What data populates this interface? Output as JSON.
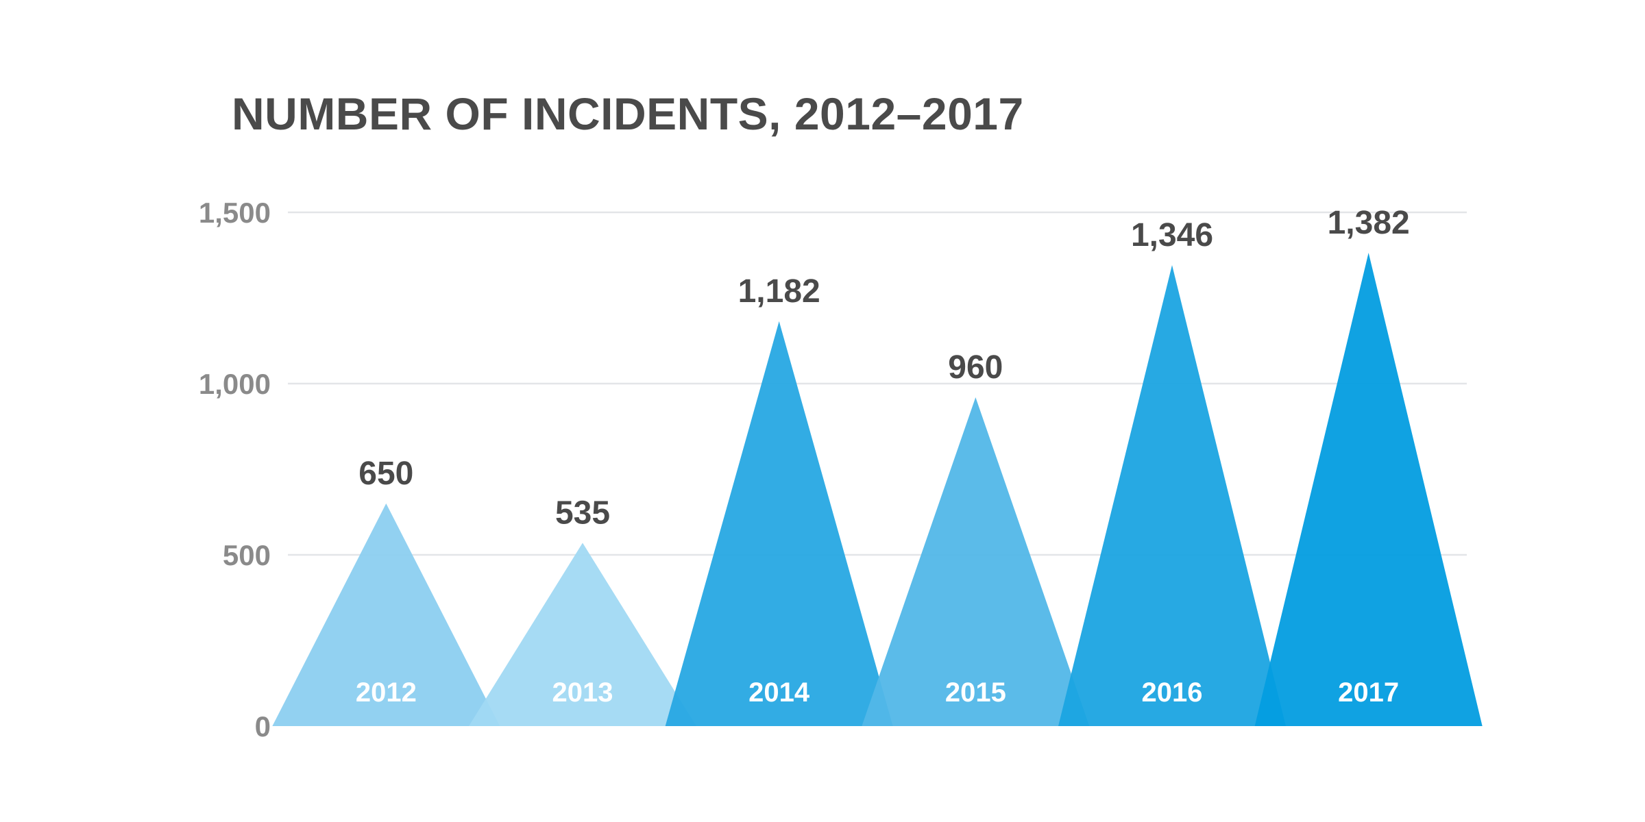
{
  "chart_data": {
    "type": "bar",
    "title": "NUMBER OF INCIDENTS, 2012–2017",
    "xlabel": "",
    "ylabel": "",
    "ylim": [
      0,
      1500
    ],
    "grid": true,
    "y_ticks": [
      0,
      500,
      1000,
      1500
    ],
    "y_tick_labels": [
      "0",
      "500",
      "1,000",
      "1,500"
    ],
    "categories": [
      "2012",
      "2013",
      "2014",
      "2015",
      "2016",
      "2017"
    ],
    "values": [
      650,
      535,
      1182,
      960,
      1346,
      1382
    ],
    "value_labels": [
      "650",
      "535",
      "1,182",
      "960",
      "1,346",
      "1,382"
    ],
    "colors": [
      "#8ccff0",
      "#a1d9f3",
      "#27a8e3",
      "#52b7e8",
      "#1ba4e2",
      "#039de0"
    ]
  }
}
